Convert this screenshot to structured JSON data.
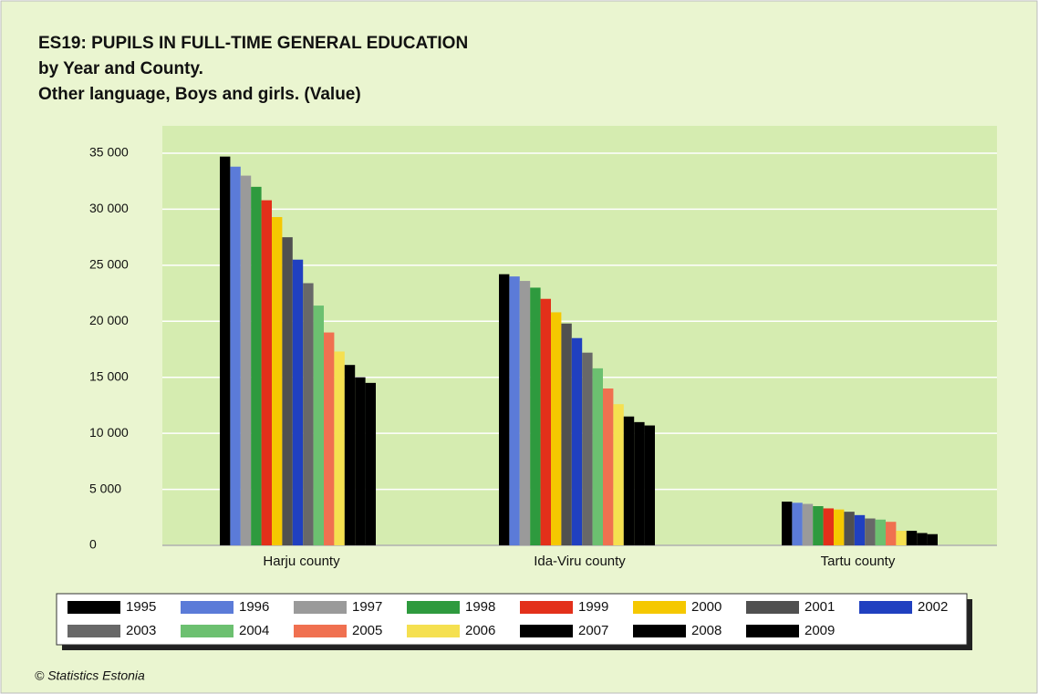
{
  "chart_data": {
    "type": "bar",
    "title": "ES19: PUPILS IN FULL-TIME GENERAL EDUCATION",
    "subtitle": [
      "by Year and County.",
      "Other language, Boys and girls. (Value)"
    ],
    "source": "© Statistics Estonia",
    "categories": [
      "Harju county",
      "Ida-Viru county",
      "Tartu county"
    ],
    "series": [
      {
        "name": "1995",
        "color": "#000000",
        "values": [
          34700,
          24200,
          3900
        ]
      },
      {
        "name": "1996",
        "color": "#5b7bd8",
        "values": [
          33800,
          24000,
          3800
        ]
      },
      {
        "name": "1997",
        "color": "#9a9a9a",
        "values": [
          33000,
          23600,
          3700
        ]
      },
      {
        "name": "1998",
        "color": "#2e9a3e",
        "values": [
          32000,
          23000,
          3500
        ]
      },
      {
        "name": "1999",
        "color": "#e3301a",
        "values": [
          30800,
          22000,
          3300
        ]
      },
      {
        "name": "2000",
        "color": "#f5c800",
        "values": [
          29300,
          20800,
          3200
        ]
      },
      {
        "name": "2001",
        "color": "#505050",
        "values": [
          27500,
          19800,
          3000
        ]
      },
      {
        "name": "2002",
        "color": "#2040c0",
        "values": [
          25500,
          18500,
          2700
        ]
      },
      {
        "name": "2003",
        "color": "#686868",
        "values": [
          23400,
          17200,
          2400
        ]
      },
      {
        "name": "2004",
        "color": "#6cc070",
        "values": [
          21400,
          15800,
          2300
        ]
      },
      {
        "name": "2005",
        "color": "#f07050",
        "values": [
          19000,
          14000,
          2100
        ]
      },
      {
        "name": "2006",
        "color": "#f5e050",
        "values": [
          17300,
          12600,
          1300
        ]
      },
      {
        "name": "2007",
        "color": "#000000",
        "values": [
          16100,
          11500,
          1300
        ]
      },
      {
        "name": "2008",
        "color": "#000000",
        "values": [
          15000,
          11000,
          1100
        ]
      },
      {
        "name": "2009",
        "color": "#000000",
        "values": [
          14500,
          10700,
          1000
        ]
      }
    ],
    "ylim": [
      0,
      35000
    ],
    "yticks": [
      0,
      {
        "value": 5000,
        "label": "5 000"
      },
      {
        "value": 10000,
        "label": "10 000"
      },
      {
        "value": 15000,
        "label": "15 000"
      },
      {
        "value": 20000,
        "label": "20 000"
      },
      {
        "value": 25000,
        "label": "25 000"
      },
      {
        "value": 30000,
        "label": "30 000"
      },
      {
        "value": 35000,
        "label": "35 000"
      }
    ],
    "grid": true,
    "legend": "bottom"
  }
}
